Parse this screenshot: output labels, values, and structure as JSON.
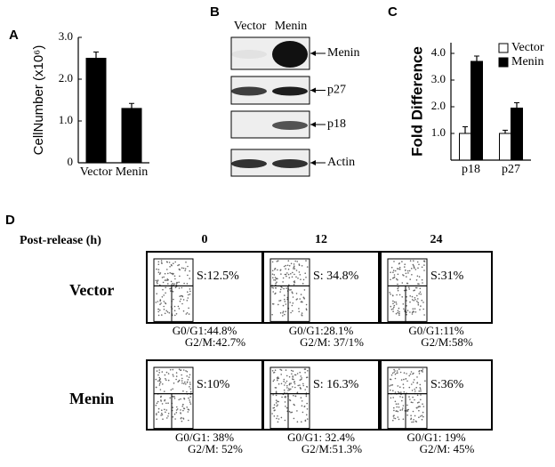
{
  "chart_data": [
    {
      "type": "bar",
      "panel_label": "A",
      "y_label": "CellNumber (x10⁶)",
      "categories": [
        "Vector",
        "Menin"
      ],
      "values": [
        2.5,
        1.3
      ],
      "errors": [
        0.15,
        0.12
      ],
      "color": "#000000",
      "ylim": [
        0,
        3.0
      ],
      "yticks": [
        0,
        {
          "value": 1.0,
          "label": "1.0"
        },
        {
          "value": 2.0,
          "label": "2.0"
        },
        {
          "value": 3.0,
          "label": "3.0"
        }
      ]
    },
    {
      "type": "bar",
      "panel_label": "C",
      "y_label": "Fold Difference",
      "categories": [
        "p18",
        "p27"
      ],
      "series": [
        {
          "name": "Vector",
          "color": "#ffffff",
          "values": [
            1.0,
            1.0
          ],
          "errors": [
            0.25,
            0.12
          ]
        },
        {
          "name": "Menin",
          "color": "#000000",
          "values": [
            3.7,
            1.95
          ],
          "errors": [
            0.2,
            0.2
          ]
        }
      ],
      "ylim": [
        0,
        4.4
      ],
      "yticks": [
        {
          "value": 1.0,
          "label": "1.0"
        },
        {
          "value": 2.0,
          "label": "2.0"
        },
        {
          "value": 3.0,
          "label": "3.0"
        },
        {
          "value": 4.0,
          "label": "4.0"
        }
      ],
      "legend": "top-right"
    }
  ],
  "panel_b": {
    "label": "B",
    "lanes": [
      "Vector",
      "Menin"
    ],
    "bands": [
      "Menin",
      "p27",
      "p18",
      "Actin"
    ]
  },
  "panel_d": {
    "label": "D",
    "header": "Post-release (h)",
    "timepoints": [
      "0",
      "12",
      "24"
    ],
    "rows": [
      {
        "name": "Vector",
        "cells": [
          {
            "s": "S:12.5%",
            "g0g1": "G0/G1:44.8%",
            "g2m": "G2/M:42.7%"
          },
          {
            "s": "S: 34.8%",
            "g0g1": "G0/G1:28.1%",
            "g2m": "G2/M: 37/1%"
          },
          {
            "s": "S:31%",
            "g0g1": "G0/G1:11%",
            "g2m": "G2/M:58%"
          }
        ]
      },
      {
        "name": "Menin",
        "cells": [
          {
            "s": "S:10%",
            "g0g1": "G0/G1: 38%",
            "g2m": "G2/M: 52%"
          },
          {
            "s": "S: 16.3%",
            "g0g1": "G0/G1: 32.4%",
            "g2m": "G2/M:51.3%"
          },
          {
            "s": "S:36%",
            "g0g1": "G0/G1: 19%",
            "g2m": "G2/M: 45%"
          }
        ]
      }
    ]
  }
}
